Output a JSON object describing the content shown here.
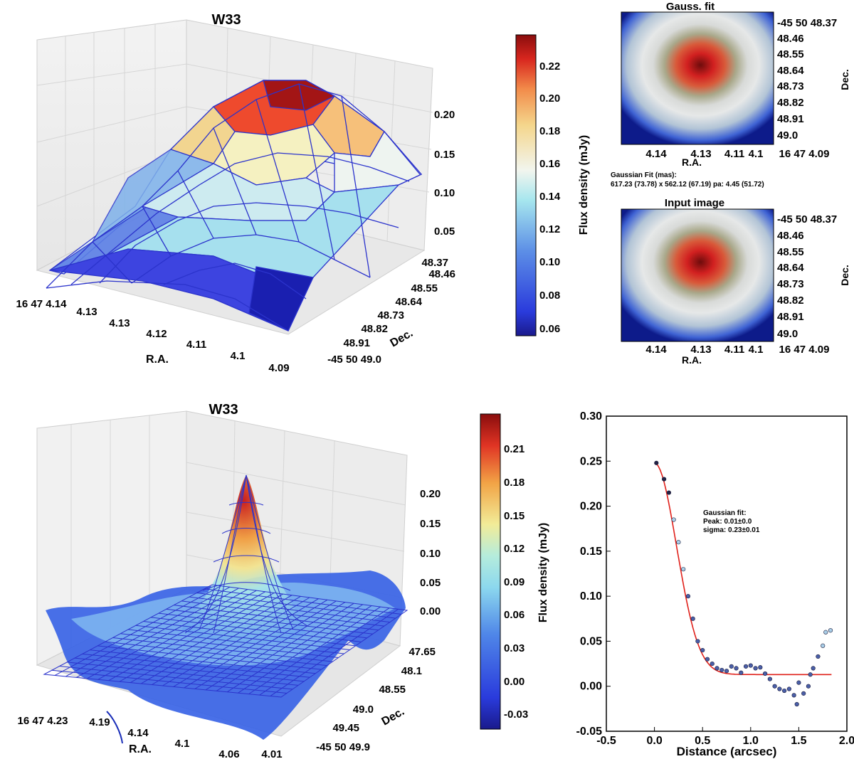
{
  "chart_data": [
    {
      "id": "surface_top",
      "type": "surface3d",
      "title": "W33",
      "xlabel": "R.A.",
      "ylabel": "Dec.",
      "x_ticks": [
        "16 47 4.14",
        "4.13",
        "4.13",
        "4.12",
        "4.11",
        "4.1",
        "4.09"
      ],
      "y_ticks": [
        "48.37",
        "48.46",
        "48.55",
        "48.64",
        "48.73",
        "48.82",
        "48.91",
        "-45 50 49.0"
      ],
      "z_ticks": [
        "0.05",
        "0.10",
        "0.15",
        "0.20"
      ],
      "z_range": [
        0.05,
        0.24
      ],
      "colorbar": {
        "label": "Flux density (mJy)",
        "ticks": [
          "0.22",
          "0.20",
          "0.18",
          "0.16",
          "0.14",
          "0.12",
          "0.10",
          "0.08",
          "0.06"
        ],
        "range": [
          0.055,
          0.235
        ]
      }
    },
    {
      "id": "gauss_fit_image",
      "type": "heatmap",
      "title": "Gauss. fit",
      "xlabel": "R.A.",
      "ylabel": "Dec.",
      "x_ticks": [
        "4.14",
        "4.13",
        "4.11",
        "4.1",
        "16 47 4.09"
      ],
      "y_ticks": [
        "-45 50 48.37",
        "48.46",
        "48.55",
        "48.64",
        "48.73",
        "48.82",
        "48.91",
        "49.0"
      ],
      "caption_lines": [
        "Gaussian Fit (mas):",
        "617.23 (73.78) x 562.12 (67.19) pa: 4.45 (51.72)"
      ]
    },
    {
      "id": "input_image",
      "type": "heatmap",
      "title": "Input image",
      "xlabel": "R.A.",
      "ylabel": "Dec.",
      "x_ticks": [
        "4.14",
        "4.13",
        "4.11",
        "4.1",
        "16 47 4.09"
      ],
      "y_ticks": [
        "-45 50 48.37",
        "48.46",
        "48.55",
        "48.64",
        "48.73",
        "48.82",
        "48.91",
        "49.0"
      ]
    },
    {
      "id": "surface_bottom",
      "type": "surface3d",
      "title": "W33",
      "xlabel": "R.A.",
      "ylabel": "Dec.",
      "x_ticks": [
        "16 47 4.23",
        "4.19",
        "4.14",
        "4.1",
        "4.06",
        "4.01"
      ],
      "y_ticks": [
        "47.65",
        "48.1",
        "48.55",
        "49.0",
        "49.45",
        "-45 50 49.9"
      ],
      "z_ticks": [
        "0.00",
        "0.05",
        "0.10",
        "0.15",
        "0.20"
      ],
      "z_range": [
        -0.04,
        0.24
      ],
      "colorbar": {
        "label": "Flux density (mJy)",
        "ticks": [
          "0.21",
          "0.18",
          "0.15",
          "0.12",
          "0.09",
          "0.06",
          "0.03",
          "0.00",
          "-0.03"
        ],
        "range": [
          -0.04,
          0.24
        ]
      }
    },
    {
      "id": "radial_profile",
      "type": "scatter",
      "title": "",
      "xlabel": "Distance (arcsec)",
      "ylabel": "",
      "xlim": [
        -0.5,
        2.0
      ],
      "ylim": [
        -0.05,
        0.3
      ],
      "x_ticks": [
        "-0.5",
        "0.0",
        "0.5",
        "1.0",
        "1.5",
        "2.0"
      ],
      "y_ticks": [
        "-0.05",
        "0.00",
        "0.05",
        "0.10",
        "0.15",
        "0.20",
        "0.25",
        "0.30"
      ],
      "annotation": [
        "Gaussian fit:",
        "Peak: 0.01±0.0",
        "sigma: 0.23±0.01"
      ],
      "points": [
        {
          "x": 0.02,
          "y": 0.248
        },
        {
          "x": 0.1,
          "y": 0.23
        },
        {
          "x": 0.15,
          "y": 0.215
        },
        {
          "x": 0.2,
          "y": 0.185
        },
        {
          "x": 0.25,
          "y": 0.16
        },
        {
          "x": 0.3,
          "y": 0.13
        },
        {
          "x": 0.35,
          "y": 0.1
        },
        {
          "x": 0.4,
          "y": 0.075
        },
        {
          "x": 0.45,
          "y": 0.05
        },
        {
          "x": 0.5,
          "y": 0.04
        },
        {
          "x": 0.55,
          "y": 0.03
        },
        {
          "x": 0.6,
          "y": 0.025
        },
        {
          "x": 0.65,
          "y": 0.02
        },
        {
          "x": 0.7,
          "y": 0.018
        },
        {
          "x": 0.75,
          "y": 0.017
        },
        {
          "x": 0.8,
          "y": 0.022
        },
        {
          "x": 0.85,
          "y": 0.02
        },
        {
          "x": 0.9,
          "y": 0.015
        },
        {
          "x": 0.95,
          "y": 0.022
        },
        {
          "x": 1.0,
          "y": 0.023
        },
        {
          "x": 1.05,
          "y": 0.02
        },
        {
          "x": 1.1,
          "y": 0.021
        },
        {
          "x": 1.15,
          "y": 0.014
        },
        {
          "x": 1.2,
          "y": 0.008
        },
        {
          "x": 1.25,
          "y": 0.0
        },
        {
          "x": 1.3,
          "y": -0.003
        },
        {
          "x": 1.35,
          "y": -0.005
        },
        {
          "x": 1.4,
          "y": -0.003
        },
        {
          "x": 1.45,
          "y": -0.01
        },
        {
          "x": 1.48,
          "y": -0.02
        },
        {
          "x": 1.5,
          "y": 0.004
        },
        {
          "x": 1.55,
          "y": -0.008
        },
        {
          "x": 1.6,
          "y": 0.0
        },
        {
          "x": 1.62,
          "y": 0.013
        },
        {
          "x": 1.65,
          "y": 0.02
        },
        {
          "x": 1.7,
          "y": 0.033
        },
        {
          "x": 1.75,
          "y": 0.045
        },
        {
          "x": 1.78,
          "y": 0.06
        },
        {
          "x": 1.83,
          "y": 0.062
        }
      ],
      "fit": {
        "peak": 0.235,
        "sigma": 0.23,
        "offset": 0.013,
        "x_end": 1.85
      }
    }
  ]
}
